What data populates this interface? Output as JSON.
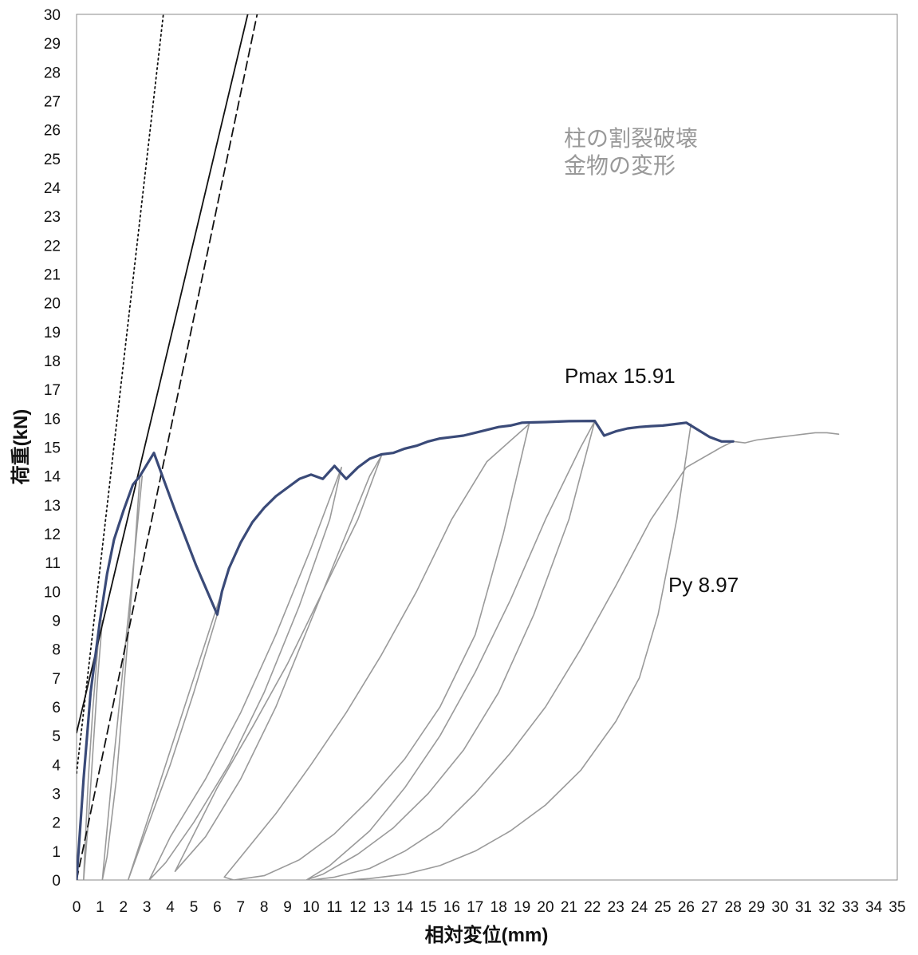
{
  "chart_data": {
    "type": "line",
    "title": "",
    "xlabel": "相対変位(mm)",
    "ylabel": "荷重(kN)",
    "xlim": [
      0,
      35
    ],
    "ylim": [
      0,
      30
    ],
    "xticks": [
      0,
      1,
      2,
      3,
      4,
      5,
      6,
      7,
      8,
      9,
      10,
      11,
      12,
      13,
      14,
      15,
      16,
      17,
      18,
      19,
      20,
      21,
      22,
      23,
      24,
      25,
      26,
      27,
      28,
      29,
      30,
      31,
      32,
      33,
      34,
      35
    ],
    "yticks": [
      0,
      1,
      2,
      3,
      4,
      5,
      6,
      7,
      8,
      9,
      10,
      11,
      12,
      13,
      14,
      15,
      16,
      17,
      18,
      19,
      20,
      21,
      22,
      23,
      24,
      25,
      26,
      27,
      28,
      29,
      30
    ],
    "grid": false,
    "annotations": {
      "pmax": "Pmax 15.91",
      "py": "Py 8.97",
      "failure_line1": "柱の割裂破壊",
      "failure_line2": "金物の変形"
    },
    "colors": {
      "envelope": "#3a4a78",
      "hysteresis": "#9a9a9a",
      "reference": "#111111",
      "note": "#999999"
    },
    "series": [
      {
        "role": "envelope",
        "style": "thick-blue",
        "x": [
          0.0,
          0.3,
          0.6,
          1.0,
          1.3,
          1.6,
          2.0,
          2.4,
          2.7,
          3.0,
          3.3,
          4.2,
          5.1,
          6.0,
          6.2,
          6.5,
          7.0,
          7.5,
          8.0,
          8.5,
          9.0,
          9.5,
          10.0,
          10.5,
          11.0,
          11.5,
          12.0,
          12.5,
          13.0,
          13.5,
          14.0,
          14.5,
          15.0,
          15.5,
          16.0,
          16.5,
          17.0,
          17.5,
          18.0,
          18.5,
          19.0,
          19.5,
          20.0,
          21.0,
          22.1,
          22.5,
          23.0,
          23.5,
          24.0,
          24.5,
          25.0,
          25.5,
          26.0,
          26.5,
          27.0,
          27.5,
          28.0
        ],
        "y": [
          0.0,
          3.5,
          6.5,
          9.0,
          10.6,
          11.8,
          12.8,
          13.7,
          14.0,
          14.4,
          14.8,
          12.8,
          10.9,
          9.2,
          10.0,
          10.8,
          11.7,
          12.4,
          12.9,
          13.3,
          13.6,
          13.9,
          14.05,
          13.9,
          14.35,
          13.9,
          14.3,
          14.6,
          14.75,
          14.8,
          14.95,
          15.05,
          15.2,
          15.3,
          15.35,
          15.4,
          15.5,
          15.6,
          15.7,
          15.75,
          15.85,
          15.86,
          15.87,
          15.9,
          15.91,
          15.4,
          15.55,
          15.65,
          15.7,
          15.73,
          15.75,
          15.8,
          15.85,
          15.6,
          15.35,
          15.2,
          15.2
        ]
      },
      {
        "role": "envelope-tail",
        "style": "thin-gray",
        "x": [
          28.0,
          28.5,
          29.0,
          29.5,
          30.0,
          30.5,
          31.0,
          31.5,
          32.0,
          32.5
        ],
        "y": [
          15.2,
          15.15,
          15.25,
          15.3,
          15.35,
          15.4,
          15.45,
          15.5,
          15.5,
          15.45
        ]
      },
      {
        "role": "cycle",
        "style": "thin-gray",
        "x": [
          1.0,
          0.7,
          0.5,
          0.35,
          0.3,
          0.5,
          0.7,
          0.9,
          1.1
        ],
        "y": [
          9.0,
          6.0,
          3.5,
          1.0,
          0.0,
          2.0,
          4.5,
          7.0,
          9.0
        ]
      },
      {
        "role": "cycle",
        "style": "thin-gray",
        "x": [
          2.7,
          2.4,
          2.0,
          1.7,
          1.3,
          1.1,
          1.5,
          2.0,
          2.5,
          2.8
        ],
        "y": [
          14.0,
          10.5,
          6.5,
          3.5,
          0.8,
          0.0,
          3.5,
          7.5,
          11.5,
          14.0
        ]
      },
      {
        "role": "cycle",
        "style": "thin-gray",
        "x": [
          6.0,
          5.0,
          4.0,
          3.0,
          2.2,
          2.6,
          3.4,
          4.4,
          5.4,
          6.2
        ],
        "y": [
          9.2,
          6.5,
          4.0,
          1.8,
          0.0,
          1.0,
          3.0,
          5.5,
          8.0,
          10.0
        ]
      },
      {
        "role": "cycle",
        "style": "thin-gray",
        "x": [
          11.3,
          10.0,
          8.5,
          7.0,
          5.5,
          4.0,
          3.1,
          3.8,
          5.0,
          6.5,
          8.0,
          9.5,
          10.8,
          11.3
        ],
        "y": [
          14.3,
          11.5,
          8.5,
          5.8,
          3.5,
          1.5,
          0.0,
          0.6,
          2.0,
          4.0,
          6.5,
          9.5,
          12.5,
          14.3
        ]
      },
      {
        "role": "cycle",
        "style": "thin-gray",
        "x": [
          13.0,
          12.0,
          10.5,
          9.0,
          7.5,
          6.0,
          4.2,
          5.5,
          7.0,
          8.5,
          10.0,
          11.5,
          12.5,
          13.0
        ],
        "y": [
          14.7,
          12.5,
          10.0,
          7.5,
          5.3,
          3.2,
          0.3,
          1.5,
          3.5,
          6.0,
          9.0,
          12.0,
          14.0,
          14.7
        ]
      },
      {
        "role": "cycle",
        "style": "thin-gray",
        "x": [
          19.3,
          18.2,
          17.0,
          15.5,
          14.0,
          12.5,
          11.0,
          9.5,
          8.0,
          6.7,
          6.3,
          7.0,
          8.5,
          10.0,
          11.5,
          13.0,
          14.5,
          16.0,
          17.5,
          19.3
        ],
        "y": [
          15.8,
          12.0,
          8.5,
          6.0,
          4.2,
          2.8,
          1.6,
          0.7,
          0.15,
          0.0,
          0.1,
          0.8,
          2.3,
          4.0,
          5.8,
          7.8,
          10.0,
          12.5,
          14.5,
          15.8
        ]
      },
      {
        "role": "cycle",
        "style": "thin-gray",
        "x": [
          22.1,
          21.0,
          19.5,
          18.0,
          16.5,
          15.0,
          13.5,
          12.0,
          10.5,
          9.8,
          10.8,
          12.5,
          14.0,
          15.5,
          17.0,
          18.5,
          20.0,
          21.5,
          22.1
        ],
        "y": [
          15.9,
          12.5,
          9.2,
          6.5,
          4.5,
          3.0,
          1.8,
          0.9,
          0.2,
          0.0,
          0.5,
          1.7,
          3.2,
          5.0,
          7.2,
          9.7,
          12.5,
          15.0,
          15.9
        ]
      },
      {
        "role": "cycle",
        "style": "thin-gray",
        "x": [
          26.2,
          25.6,
          24.8,
          24.0,
          23.0,
          21.5,
          20.0,
          18.5,
          17.0,
          15.5,
          14.0,
          12.5,
          11.5,
          10.0,
          11.0,
          12.5,
          14.0,
          15.5,
          17.0,
          18.5,
          20.0,
          21.5,
          23.0,
          24.5,
          26.0,
          27.5,
          28.0
        ],
        "y": [
          15.8,
          12.5,
          9.2,
          7.0,
          5.5,
          3.8,
          2.6,
          1.7,
          1.0,
          0.5,
          0.2,
          0.05,
          0.0,
          0.0,
          0.1,
          0.4,
          1.0,
          1.8,
          3.0,
          4.4,
          6.0,
          8.0,
          10.2,
          12.5,
          14.3,
          15.0,
          15.2
        ]
      },
      {
        "role": "reference",
        "style": "solid-black",
        "x": [
          0.0,
          7.3
        ],
        "y": [
          5.1,
          30.0
        ]
      },
      {
        "role": "reference",
        "style": "dashed-black",
        "x": [
          0.0,
          7.7
        ],
        "y": [
          0.0,
          30.0
        ]
      },
      {
        "role": "reference",
        "style": "dotted-black",
        "x": [
          0.0,
          3.7
        ],
        "y": [
          3.7,
          30.0
        ]
      }
    ]
  }
}
